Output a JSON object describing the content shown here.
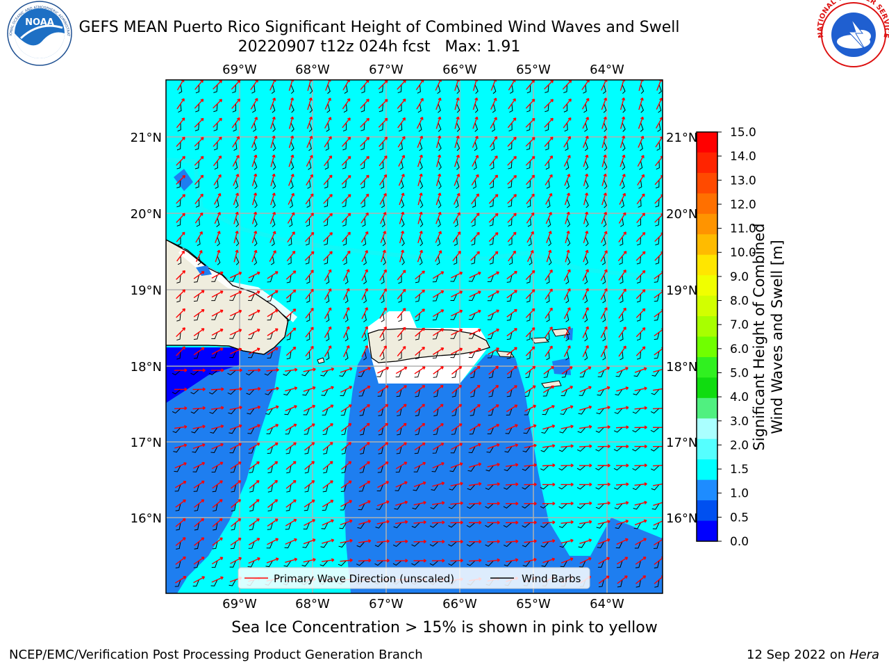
{
  "title": {
    "line1": "GEFS MEAN Puerto Rico Significant Height of Combined Wind Waves and Swell",
    "line2": "20220907 t12z 024h fcst   Max: 1.91"
  },
  "axes": {
    "lon_labels": [
      "69°W",
      "68°W",
      "67°W",
      "66°W",
      "65°W",
      "64°W"
    ],
    "lat_labels": [
      "21°N",
      "20°N",
      "19°N",
      "18°N",
      "17°N",
      "16°N"
    ]
  },
  "legend": {
    "primary_wave": "Primary Wave Direction (unscaled)",
    "wind_barbs": "Wind Barbs"
  },
  "colorbar": {
    "title_line1": "Significant Height of Combined",
    "title_line2": "Wind Waves and Swell [m]",
    "ticks": [
      "15.0",
      "14.0",
      "13.0",
      "12.0",
      "11.0",
      "10.0",
      "9.0",
      "8.0",
      "7.0",
      "6.0",
      "5.0",
      "4.0",
      "3.0",
      "2.0",
      "1.5",
      "1.0",
      "0.5",
      "0.0"
    ],
    "colors": [
      "#ff0000",
      "#ff2400",
      "#ff4a00",
      "#ff7000",
      "#ff9400",
      "#ffbb00",
      "#ffe600",
      "#f0ff00",
      "#d2ff00",
      "#a8ff00",
      "#70ff00",
      "#30f020",
      "#10dc10",
      "#50f080",
      "#aaffff",
      "#55ffff",
      "#00ffff",
      "#1e8cff",
      "#0050f0",
      "#0000ff"
    ]
  },
  "field_colors": {
    "cyan": "#00ffff",
    "blue": "#1e7ef0",
    "darkblue": "#0000ff",
    "land": "#efedde",
    "arrow": "#ff0000"
  },
  "ice_note": "Sea Ice Concentration > 15% is shown in pink to yellow",
  "footer": {
    "left": "NCEP/EMC/Verification Post Processing Product Generation Branch",
    "date": "12 Sep 2022 on ",
    "host": "Hera"
  },
  "logos": {
    "noaa": "NOAA",
    "nws": "NATIONAL WEATHER SERVICE"
  }
}
